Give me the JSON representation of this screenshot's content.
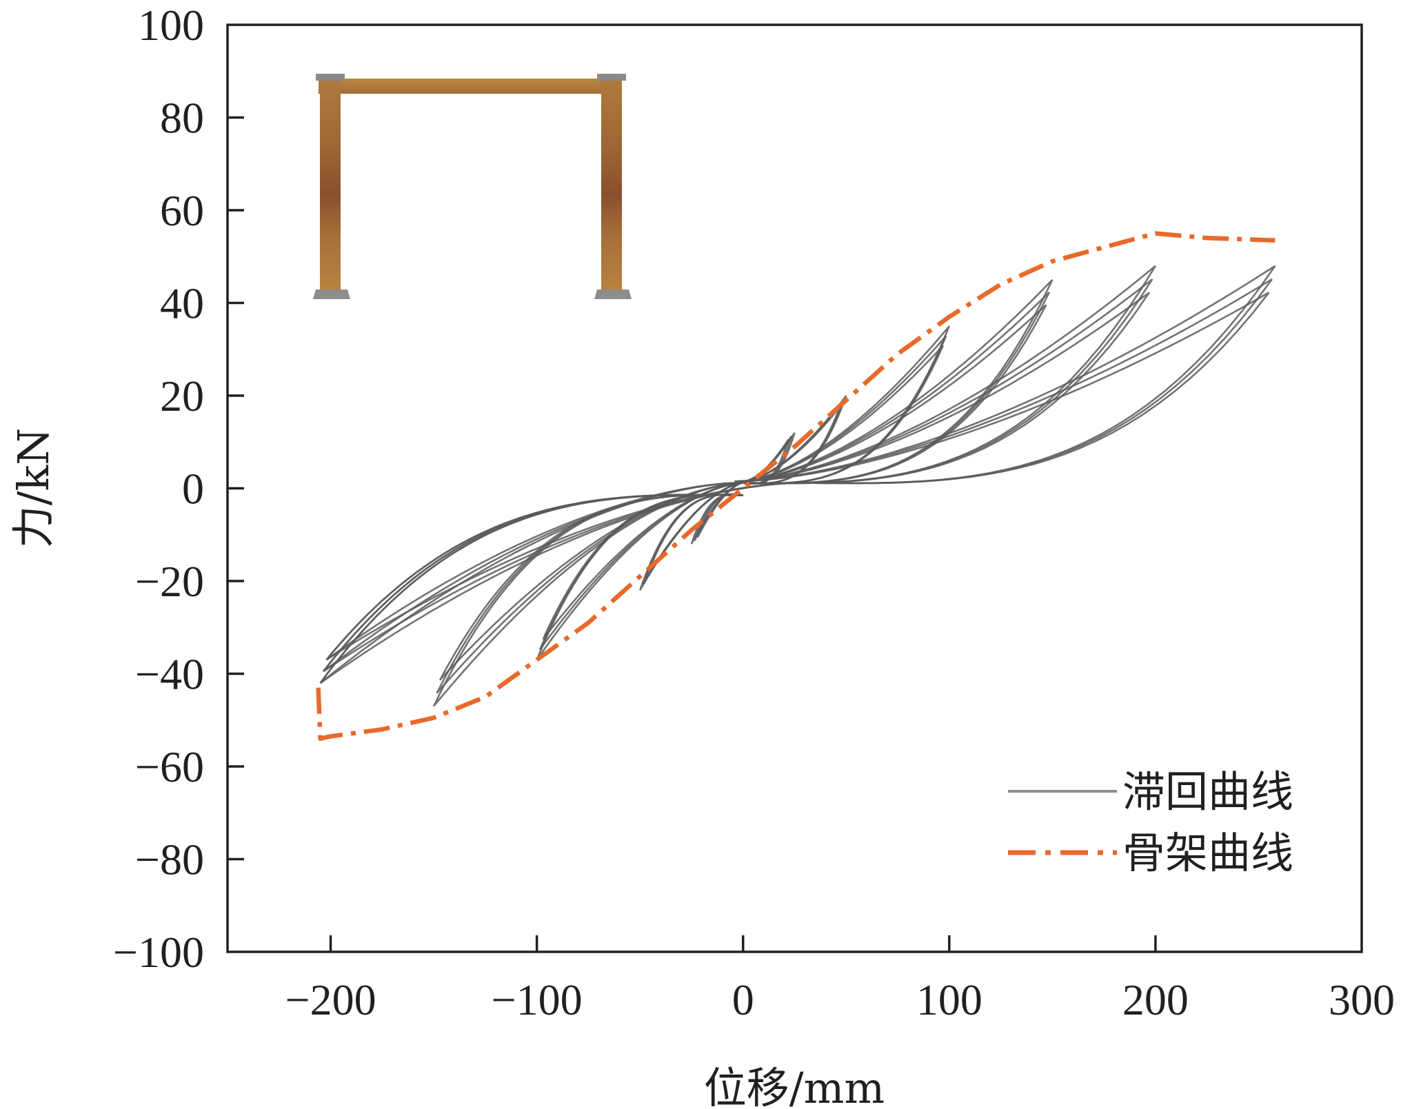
{
  "chart_data": {
    "type": "line",
    "title": "",
    "xlabel": "位移/mm",
    "ylabel": "力/kN",
    "xlim": [
      -250,
      300
    ],
    "ylim": [
      -100,
      100
    ],
    "x_ticks": [
      -200,
      -100,
      0,
      100,
      200,
      300
    ],
    "x_tick_labels": [
      "−200",
      "−100",
      "0",
      "100",
      "200",
      "300"
    ],
    "y_ticks": [
      100,
      80,
      60,
      40,
      20,
      0,
      -20,
      -40,
      -60,
      -80,
      -100
    ],
    "y_tick_labels": [
      "100",
      "80",
      "60",
      "40",
      "20",
      "0",
      "−20",
      "−40",
      "−60",
      "−80",
      "−100"
    ],
    "grid": false,
    "legend_position": "bottom-right",
    "colors": {
      "hysteresis": "#5a5a5a",
      "skeleton": "#e8692a",
      "axis": "#231f20",
      "frame_wood": "#a06a35",
      "frame_plate": "#8a8a8a"
    },
    "series": [
      {
        "name": "滞回曲线",
        "style": "solid",
        "cycles": [
          {
            "amp_pos": 25,
            "amp_neg": -25,
            "f_pos": 12,
            "f_neg": -12,
            "count": 3
          },
          {
            "amp_pos": 50,
            "amp_neg": -50,
            "f_pos": 20,
            "f_neg": -22,
            "count": 3
          },
          {
            "amp_pos": 100,
            "amp_neg": -100,
            "f_pos": 35,
            "f_neg": -37,
            "count": 3
          },
          {
            "amp_pos": 150,
            "amp_neg": -150,
            "f_pos": 45,
            "f_neg": -47,
            "count": 3
          },
          {
            "amp_pos": 200,
            "amp_neg": -205,
            "f_pos": 48,
            "f_neg": -42,
            "count": 3
          },
          {
            "amp_pos": 258,
            "amp_neg": -205,
            "f_pos": 48,
            "f_neg": -42,
            "count": 3
          }
        ]
      },
      {
        "name": "骨架曲线",
        "style": "dash-dot",
        "x": [
          -206,
          -205,
          -200,
          -175,
          -150,
          -125,
          -100,
          -75,
          -50,
          -25,
          0,
          25,
          50,
          75,
          100,
          125,
          150,
          175,
          200,
          225,
          258
        ],
        "y": [
          -43,
          -54,
          -53.5,
          -52,
          -49.5,
          -45,
          -37,
          -29,
          -19,
          -9,
          0,
          9,
          19,
          29,
          37,
          44,
          49,
          52,
          55,
          54,
          53.5
        ]
      }
    ]
  },
  "inset": {
    "icon": "portal-frame-icon"
  }
}
